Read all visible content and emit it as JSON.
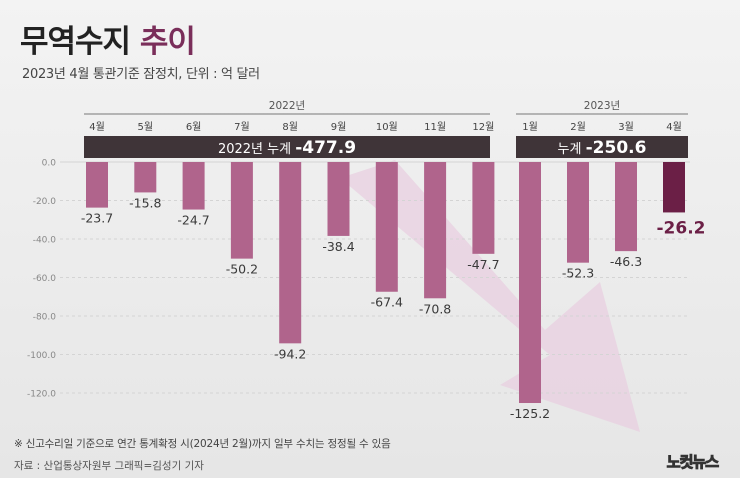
{
  "title": {
    "part1": "무역수지",
    "part2": "추이"
  },
  "subtitle": "2023년 4월 통관기준 잠정치, 단위 : 억 달러",
  "note": "※ 신고수리일 기준으로 연간 통계확정 시(2024년 2월)까지 일부 수치는 정정될 수 있음",
  "source": "자료 : 산업통상자원부     그래픽=김성기 기자",
  "logo": "노컷뉴스",
  "colors": {
    "bar": "#b0648c",
    "bar_highlight": "#6b1f46",
    "banner": "#3f3438",
    "arrow": "#e8cfe0"
  },
  "chart_data": {
    "type": "bar",
    "ylim": [
      -130,
      0
    ],
    "yticks": [
      0,
      -20,
      -40,
      -60,
      -80,
      -100,
      -120
    ],
    "ytick_labels": [
      "0.0",
      "-20.0",
      "-40.0",
      "-60.0",
      "-80.0",
      "-100.0",
      "-120.0"
    ],
    "groups": [
      {
        "year_label": "2022년",
        "cumulative_label": "2022년 누계",
        "cumulative_value": "-477.9",
        "categories": [
          "4월",
          "5월",
          "6월",
          "7월",
          "8월",
          "9월",
          "10월",
          "11월",
          "12월"
        ],
        "values": [
          -23.7,
          -15.8,
          -24.7,
          -50.2,
          -94.2,
          -38.4,
          -67.4,
          -70.8,
          -47.7
        ],
        "value_labels": [
          "-23.7",
          "-15.8",
          "-24.7",
          "-50.2",
          "-94.2",
          "-38.4",
          "-67.4",
          "-70.8",
          "-47.7"
        ]
      },
      {
        "year_label": "2023년",
        "cumulative_label": "누계",
        "cumulative_value": "-250.6",
        "categories": [
          "1월",
          "2월",
          "3월",
          "4월"
        ],
        "values": [
          -125.2,
          -52.3,
          -46.3,
          -26.2
        ],
        "value_labels": [
          "-125.2",
          "-52.3",
          "-46.3",
          "-26.2"
        ]
      }
    ],
    "highlight": {
      "group": 1,
      "index": 3
    },
    "grid": true
  }
}
